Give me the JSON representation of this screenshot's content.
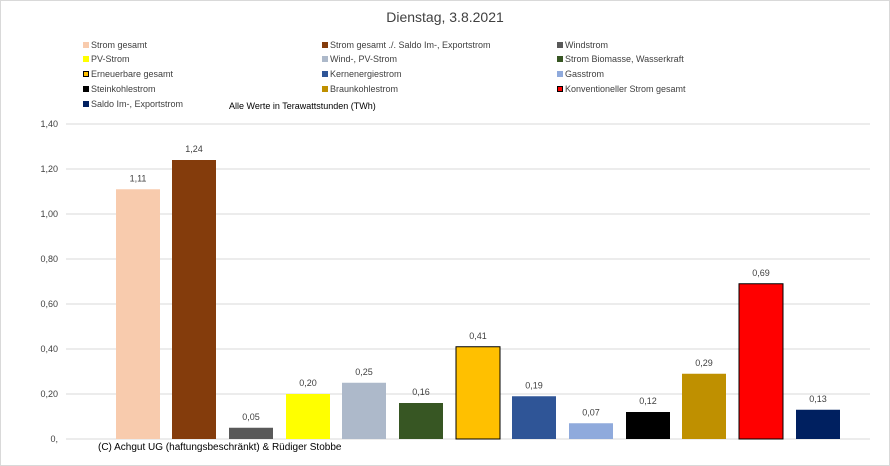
{
  "chart_data": {
    "type": "bar",
    "title": "Dienstag, 3.8.2021",
    "subtitle": "Alle Werte in Terawattstunden (TWh)",
    "xlabel": "",
    "ylabel": "",
    "ylim": [
      0,
      1.4
    ],
    "y_ticks": [
      "0,",
      "0,20",
      "0,40",
      "0,60",
      "0,80",
      "1,00",
      "1,20",
      "1,40"
    ],
    "grid": true,
    "legend_position": "top",
    "categories": [
      "Strom gesamt",
      "Strom gesamt ./. Saldo Im-, Exportstrom",
      "Windstrom",
      "PV-Strom",
      "Wind-, PV-Strom",
      "Strom Biomasse, Wasserkraft",
      "Erneuerbare gesamt",
      "Kernenergiestrom",
      "Gasstrom",
      "Steinkohlestrom",
      "Braunkohlestrom",
      "Konventioneller Strom gesamt",
      "Saldo Im-, Exportstrom"
    ],
    "values": [
      1.11,
      1.24,
      0.05,
      0.2,
      0.25,
      0.16,
      0.41,
      0.19,
      0.07,
      0.12,
      0.29,
      0.69,
      0.13
    ],
    "value_labels": [
      "1,11",
      "1,24",
      "0,05",
      "0,20",
      "0,25",
      "0,16",
      "0,41",
      "0,19",
      "0,07",
      "0,12",
      "0,29",
      "0,69",
      "0,13"
    ],
    "colors": [
      "#f8cbad",
      "#843c0c",
      "#595959",
      "#ffff00",
      "#adb9ca",
      "#375623",
      "#ffc000",
      "#2f5597",
      "#8faadc",
      "#000000",
      "#bf9000",
      "#ff0000",
      "#002060"
    ],
    "outlined": [
      false,
      false,
      false,
      false,
      false,
      false,
      true,
      false,
      false,
      false,
      false,
      true,
      false
    ],
    "legend": [
      "Strom gesamt",
      "Strom gesamt ./. Saldo Im-, Exportstrom",
      "Windstrom",
      "PV-Strom",
      "Wind-, PV-Strom",
      "Strom Biomasse, Wasserkraft",
      "Erneuerbare gesamt",
      "Kernenergiestrom",
      "Gasstrom",
      "Steinkohlestrom",
      "Braunkohlestrom",
      "Konventioneller Strom gesamt",
      "Saldo Im-, Exportstrom"
    ]
  },
  "footer": {
    "copyright": "(C) Achgut UG (haftungsbeschränkt) & Rüdiger Stobbe"
  }
}
